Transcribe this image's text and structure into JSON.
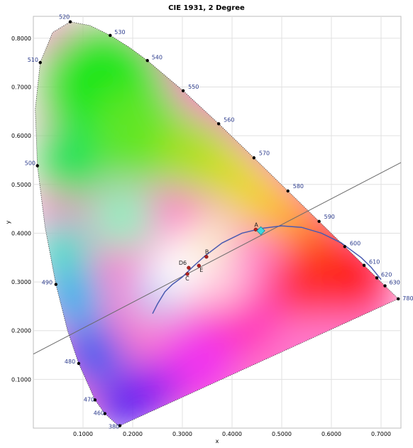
{
  "chart_data": {
    "type": "scatter",
    "title": "CIE 1931, 2 Degree",
    "xlabel": "x",
    "ylabel": "y",
    "xlim": [
      0.0,
      0.74
    ],
    "ylim": [
      0.0,
      0.845
    ],
    "grid": true,
    "x_ticks": [
      "0.1000",
      "0.2000",
      "0.3000",
      "0.4000",
      "0.5000",
      "0.6000",
      "0.7000"
    ],
    "x_tick_values": [
      0.1,
      0.2,
      0.3,
      0.4,
      0.5,
      0.6,
      0.7
    ],
    "y_ticks": [
      "0.1000",
      "0.2000",
      "0.3000",
      "0.4000",
      "0.5000",
      "0.6000",
      "0.7000",
      "0.8000"
    ],
    "y_tick_values": [
      0.1,
      0.2,
      0.3,
      0.4,
      0.5,
      0.6,
      0.7,
      0.8
    ],
    "spectral_locus": [
      {
        "wl": "380",
        "x": 0.1741,
        "y": 0.005
      },
      {
        "x": 0.1738,
        "y": 0.0049
      },
      {
        "x": 0.1733,
        "y": 0.0048
      },
      {
        "x": 0.1726,
        "y": 0.0048
      },
      {
        "x": 0.1714,
        "y": 0.0051
      },
      {
        "x": 0.1689,
        "y": 0.0069
      },
      {
        "x": 0.1644,
        "y": 0.0109
      },
      {
        "wl": "460",
        "x": 0.144,
        "y": 0.0297
      },
      {
        "wl": "470",
        "x": 0.1241,
        "y": 0.0578
      },
      {
        "wl": "480",
        "x": 0.0913,
        "y": 0.1327
      },
      {
        "x": 0.0687,
        "y": 0.2007
      },
      {
        "wl": "490",
        "x": 0.0454,
        "y": 0.295
      },
      {
        "x": 0.0235,
        "y": 0.4127
      },
      {
        "wl": "500",
        "x": 0.0082,
        "y": 0.5384
      },
      {
        "x": 0.0039,
        "y": 0.6548
      },
      {
        "wl": "510",
        "x": 0.0139,
        "y": 0.7502
      },
      {
        "x": 0.0389,
        "y": 0.812
      },
      {
        "wl": "520",
        "x": 0.0743,
        "y": 0.8338
      },
      {
        "x": 0.1142,
        "y": 0.8262
      },
      {
        "wl": "530",
        "x": 0.1547,
        "y": 0.8059
      },
      {
        "x": 0.1929,
        "y": 0.7816
      },
      {
        "wl": "540",
        "x": 0.2296,
        "y": 0.7543
      },
      {
        "wl": "550",
        "x": 0.3016,
        "y": 0.6923
      },
      {
        "wl": "560",
        "x": 0.3731,
        "y": 0.6245
      },
      {
        "wl": "570",
        "x": 0.4441,
        "y": 0.5547
      },
      {
        "wl": "580",
        "x": 0.5125,
        "y": 0.4866
      },
      {
        "wl": "590",
        "x": 0.5752,
        "y": 0.4242
      },
      {
        "wl": "600",
        "x": 0.627,
        "y": 0.3725
      },
      {
        "wl": "610",
        "x": 0.6658,
        "y": 0.334
      },
      {
        "wl": "620",
        "x": 0.6915,
        "y": 0.3083
      },
      {
        "wl": "630",
        "x": 0.7079,
        "y": 0.292
      },
      {
        "wl": "780",
        "x": 0.7347,
        "y": 0.2653
      }
    ],
    "planckian_locus": [
      {
        "x": 0.24,
        "y": 0.235
      },
      {
        "x": 0.25,
        "y": 0.255
      },
      {
        "x": 0.265,
        "y": 0.28
      },
      {
        "x": 0.28,
        "y": 0.295
      },
      {
        "x": 0.3,
        "y": 0.31
      },
      {
        "x": 0.32,
        "y": 0.33
      },
      {
        "x": 0.345,
        "y": 0.353
      },
      {
        "x": 0.38,
        "y": 0.38
      },
      {
        "x": 0.42,
        "y": 0.4
      },
      {
        "x": 0.46,
        "y": 0.41
      },
      {
        "x": 0.5,
        "y": 0.415
      },
      {
        "x": 0.54,
        "y": 0.412
      },
      {
        "x": 0.58,
        "y": 0.4
      },
      {
        "x": 0.62,
        "y": 0.38
      },
      {
        "x": 0.66,
        "y": 0.35
      },
      {
        "x": 0.68,
        "y": 0.33
      },
      {
        "x": 0.7,
        "y": 0.305
      }
    ],
    "reference_line": [
      {
        "x": 0.0,
        "y": 0.152
      },
      {
        "x": 0.74,
        "y": 0.545
      }
    ],
    "illuminants": [
      {
        "label": "A",
        "x": 0.4476,
        "y": 0.4074
      },
      {
        "label": "B",
        "x": 0.3484,
        "y": 0.3516
      },
      {
        "label": "D6",
        "x": 0.3127,
        "y": 0.329
      },
      {
        "label": "E",
        "x": 0.3333,
        "y": 0.3333
      },
      {
        "label": "C",
        "x": 0.3101,
        "y": 0.3162
      }
    ],
    "highlight_point": {
      "x": 0.458,
      "y": 0.405,
      "color": "#3fd6e0"
    },
    "colors": {
      "locus_dot": "#000000",
      "wavelength_label": "#2a3a8c",
      "planckian": "#4a5ab0",
      "illuminant_dot": "#b22222",
      "reference_line": "#6a6a6a",
      "grid": "#e0e0e0"
    }
  }
}
